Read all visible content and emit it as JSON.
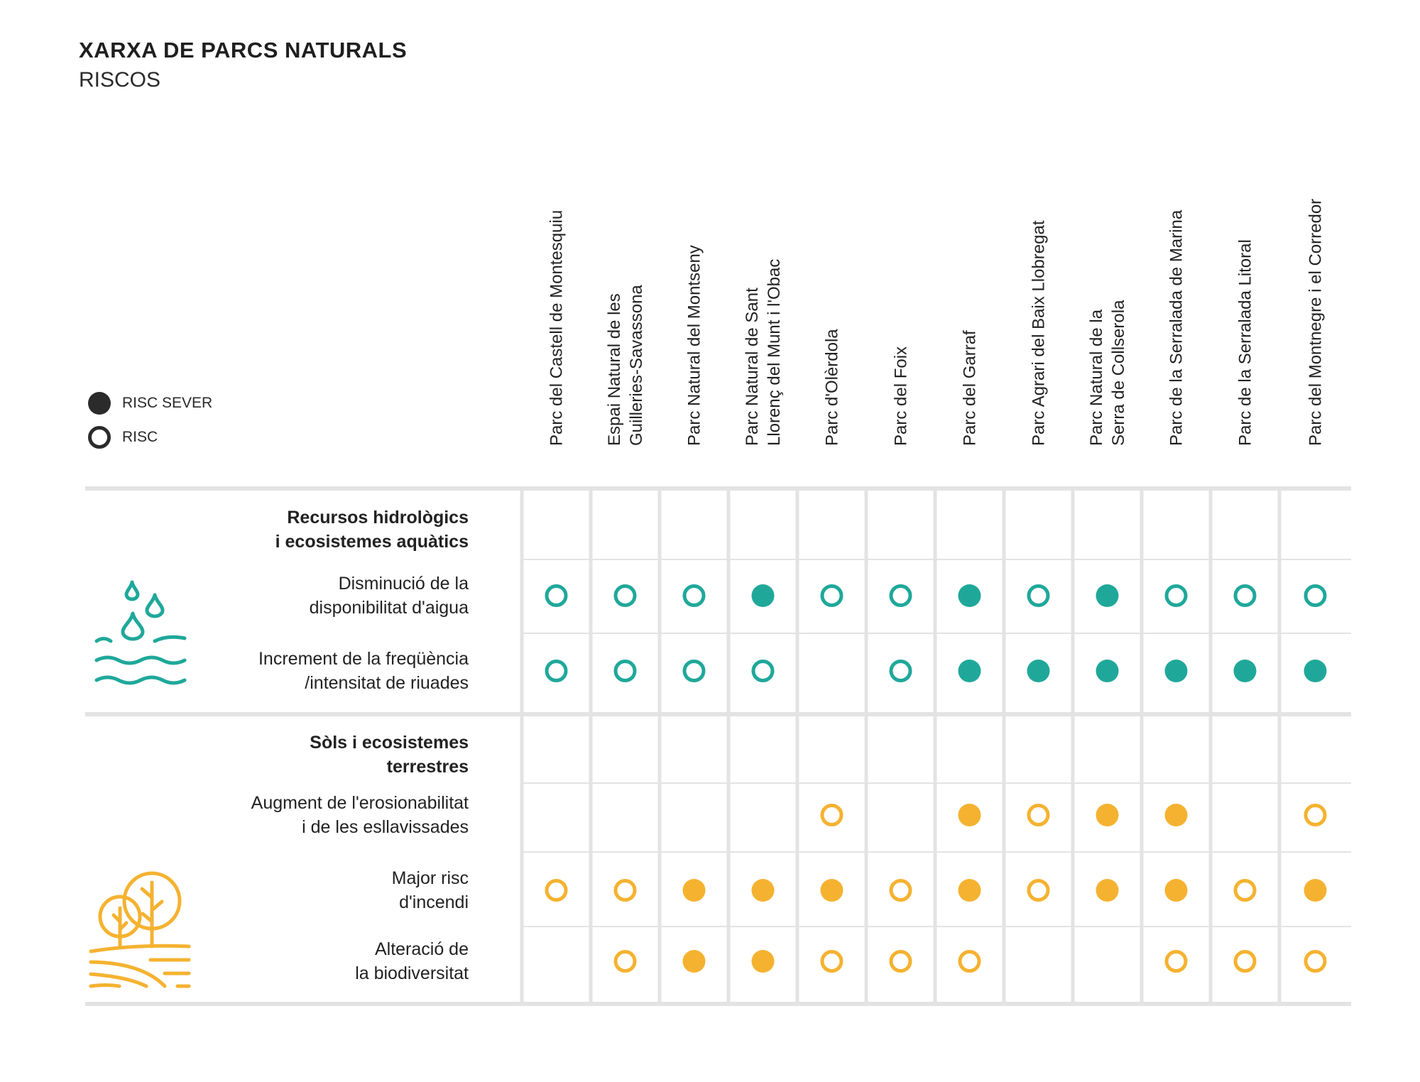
{
  "header": {
    "title": "XARXA DE PARCS NATURALS",
    "subtitle": "RISCOS"
  },
  "legend": {
    "items": [
      {
        "kind": "severe",
        "label": "RISC SEVER"
      },
      {
        "kind": "risk",
        "label": "RISC"
      }
    ]
  },
  "colors": {
    "water": "#1fa89a",
    "soil": "#f5b230",
    "grid": "#e3e3e3",
    "text": "#222222",
    "legend": "#2b2b2b"
  },
  "chart_data": {
    "type": "table",
    "title": "XARXA DE PARCS NATURALS",
    "subtitle": "RISCOS",
    "value_encoding": {
      "2": "RISC SEVER",
      "1": "RISC",
      "0": ""
    },
    "columns": [
      [
        "Parc del Castell de Montesquiu"
      ],
      [
        "Espai Natural de les",
        "Guilleries-Savassona"
      ],
      [
        "Parc Natural del Montseny"
      ],
      [
        "Parc Natural de Sant",
        "Llorenç del Munt i l'Obac"
      ],
      [
        "Parc d'Olèrdola"
      ],
      [
        "Parc del Foix"
      ],
      [
        "Parc del Garraf"
      ],
      [
        "Parc Agrari del Baix Llobregat"
      ],
      [
        "Parc Natural de la",
        "Serra de Collserola"
      ],
      [
        "Parc de la Serralada de Marina"
      ],
      [
        "Parc de la Serralada Litoral"
      ],
      [
        "Parc del Montnegre i el Corredor"
      ]
    ],
    "groups": [
      {
        "title": [
          "Recursos hidrològics",
          "i ecosistemes aquàtics"
        ],
        "icon": "water-drops-waves-icon",
        "color": "#1fa89a",
        "rows": [
          {
            "label": [
              "Disminució de la",
              "disponibilitat d'aigua"
            ],
            "values": [
              1,
              1,
              1,
              2,
              1,
              1,
              2,
              1,
              2,
              1,
              1,
              1
            ]
          },
          {
            "label": [
              "Increment de la freqüència",
              "/intensitat de riuades"
            ],
            "values": [
              1,
              1,
              1,
              1,
              0,
              1,
              2,
              2,
              2,
              2,
              2,
              2
            ]
          }
        ]
      },
      {
        "title": [
          "Sòls i ecosistemes",
          "terrestres"
        ],
        "icon": "trees-fields-icon",
        "color": "#f5b230",
        "rows": [
          {
            "label": [
              "Augment de l'erosionabilitat",
              "i de les esllavissades"
            ],
            "values": [
              0,
              0,
              0,
              0,
              1,
              0,
              2,
              1,
              2,
              2,
              0,
              1
            ]
          },
          {
            "label": [
              "Major risc",
              "d'incendi"
            ],
            "values": [
              1,
              1,
              2,
              2,
              2,
              1,
              2,
              1,
              2,
              2,
              1,
              2
            ]
          },
          {
            "label": [
              "Alteració de",
              "la biodiversitat"
            ],
            "values": [
              0,
              1,
              2,
              2,
              1,
              1,
              1,
              0,
              0,
              1,
              1,
              1
            ]
          }
        ]
      }
    ]
  }
}
